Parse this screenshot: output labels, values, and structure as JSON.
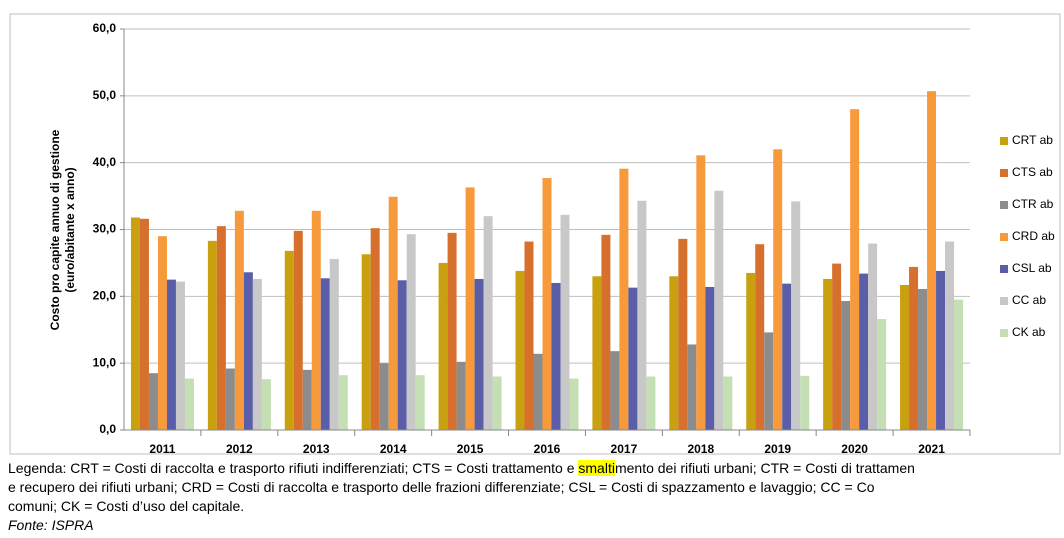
{
  "chart_data": {
    "type": "bar",
    "y_label": [
      "Costo pro capite annuo di gestione",
      "(euro/abitante x anno)"
    ],
    "categories": [
      "2011",
      "2012",
      "2013",
      "2014",
      "2015",
      "2016",
      "2017",
      "2018",
      "2019",
      "2020",
      "2021"
    ],
    "series": [
      {
        "name": "CRT ab",
        "color": "#c9a00f",
        "values": [
          31.8,
          28.3,
          26.8,
          26.3,
          25.0,
          23.8,
          23.0,
          23.0,
          23.5,
          22.6,
          21.7
        ]
      },
      {
        "name": "CTS ab",
        "color": "#d7702c",
        "values": [
          31.6,
          30.5,
          29.8,
          30.2,
          29.5,
          28.2,
          29.2,
          28.6,
          27.8,
          24.9,
          24.4
        ]
      },
      {
        "name": "CTR ab",
        "color": "#8c8c8c",
        "values": [
          8.5,
          9.2,
          9.0,
          10.0,
          10.2,
          11.4,
          11.8,
          12.8,
          14.6,
          19.3,
          21.1
        ]
      },
      {
        "name": "CRD ab",
        "color": "#f79a3c",
        "values": [
          29.0,
          32.8,
          32.8,
          34.9,
          36.3,
          37.7,
          39.1,
          41.1,
          42.0,
          48.0,
          50.7
        ]
      },
      {
        "name": "CSL ab",
        "color": "#5a5ea8",
        "values": [
          22.5,
          23.6,
          22.7,
          22.4,
          22.6,
          22.0,
          21.3,
          21.4,
          21.9,
          23.4,
          23.8
        ]
      },
      {
        "name": "CC ab",
        "color": "#c8c8c8",
        "values": [
          22.2,
          22.6,
          25.6,
          29.3,
          32.0,
          32.2,
          34.3,
          35.8,
          34.2,
          27.9,
          28.2
        ]
      },
      {
        "name": "CK ab",
        "color": "#c3dfb3",
        "values": [
          7.7,
          7.6,
          8.2,
          8.2,
          8.0,
          7.7,
          8.0,
          8.0,
          8.1,
          16.6,
          19.5
        ]
      }
    ],
    "ylim": [
      0,
      60
    ],
    "yticks": [
      {
        "value": 0,
        "label": "0,0"
      },
      {
        "value": 10,
        "label": "10,0"
      },
      {
        "value": 20,
        "label": "20,0"
      },
      {
        "value": 30,
        "label": "30,0"
      },
      {
        "value": 40,
        "label": "40,0"
      },
      {
        "value": 50,
        "label": "50,0"
      },
      {
        "value": 60,
        "label": "60,0"
      }
    ],
    "grid": true,
    "legend": "right"
  },
  "caption": {
    "line1_before": "Legenda: CRT = Costi di raccolta e trasporto rifiuti indifferenziati; CTS = Costi trattamento e ",
    "line1_highlight": "smalti",
    "line1_after": "mento dei rifiuti urbani; CTR = Costi di trattamen",
    "line2": "e recupero dei rifiuti urbani; CRD = Costi di raccolta e trasporto delle frazioni differenziate; CSL = Costi di spazzamento e lavaggio; CC = Co",
    "line3": "comuni; CK = Costi d’uso del capitale.",
    "source": "Fonte: ISPRA"
  }
}
